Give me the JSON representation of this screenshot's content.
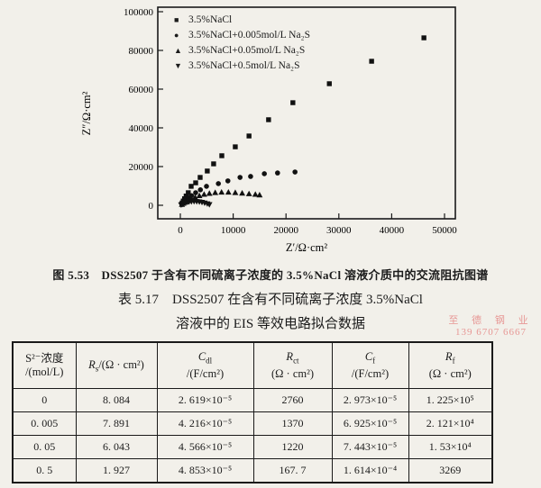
{
  "page_type": "scanned book page with EIS Nyquist plot and fitting-data table",
  "figure": {
    "caption": "图 5.53　DSS2507 于含有不同硫离子浓度的 3.5%NaCl 溶液介质中的交流阻抗图谱"
  },
  "chart_data": {
    "type": "scatter",
    "title": "",
    "xlabel": "Z′/Ω·cm²",
    "ylabel": "Z″/Ω·cm²",
    "xlim": [
      0,
      50000
    ],
    "ylim": [
      0,
      100000
    ],
    "x_ticks": [
      0,
      10000,
      20000,
      30000,
      40000,
      50000
    ],
    "y_ticks": [
      0,
      20000,
      40000,
      60000,
      80000,
      100000
    ],
    "grid": false,
    "legend_position": "top-left-inside",
    "marker_color": "#111111",
    "series": [
      {
        "name": "3.5%NaCl",
        "marker": "square",
        "points": [
          [
            350,
            1200
          ],
          [
            550,
            2200
          ],
          [
            800,
            3400
          ],
          [
            1100,
            4800
          ],
          [
            1500,
            6500
          ],
          [
            2050,
            9800
          ],
          [
            2900,
            11600
          ],
          [
            3750,
            14400
          ],
          [
            5100,
            17700
          ],
          [
            6300,
            21400
          ],
          [
            7850,
            25600
          ],
          [
            10400,
            30200
          ],
          [
            13000,
            35800
          ],
          [
            16700,
            44200
          ],
          [
            21300,
            53000
          ],
          [
            28200,
            62800
          ],
          [
            36200,
            74400
          ],
          [
            46100,
            86500
          ]
        ]
      },
      {
        "name": "3.5%NaCl+0.005mol/L Na₂S",
        "marker": "circle",
        "points": [
          [
            350,
            900
          ],
          [
            600,
            1700
          ],
          [
            1000,
            2700
          ],
          [
            1500,
            3800
          ],
          [
            2100,
            5000
          ],
          [
            2900,
            6500
          ],
          [
            3800,
            8000
          ],
          [
            4950,
            9800
          ],
          [
            7200,
            11200
          ],
          [
            9000,
            12600
          ],
          [
            11300,
            14400
          ],
          [
            13300,
            14900
          ],
          [
            15900,
            16300
          ],
          [
            18400,
            16700
          ],
          [
            21700,
            17200
          ]
        ]
      },
      {
        "name": "3.5%NaCl+0.05mol/L Na₂S",
        "marker": "triangle-up",
        "points": [
          [
            300,
            500
          ],
          [
            600,
            1100
          ],
          [
            1000,
            1800
          ],
          [
            1500,
            2600
          ],
          [
            2100,
            3400
          ],
          [
            2800,
            4200
          ],
          [
            3600,
            5000
          ],
          [
            4500,
            5700
          ],
          [
            5500,
            6200
          ],
          [
            6600,
            6600
          ],
          [
            7800,
            6800
          ],
          [
            9100,
            6800
          ],
          [
            10400,
            6600
          ],
          [
            11700,
            6300
          ],
          [
            13000,
            6000
          ],
          [
            14200,
            5700
          ],
          [
            15000,
            5400
          ]
        ]
      },
      {
        "name": "3.5%NaCl+0.5mol/L Na₂S",
        "marker": "triangle-down",
        "points": [
          [
            150,
            200
          ],
          [
            350,
            500
          ],
          [
            600,
            850
          ],
          [
            900,
            1200
          ],
          [
            1250,
            1500
          ],
          [
            1650,
            1750
          ],
          [
            2100,
            1900
          ],
          [
            2600,
            1950
          ],
          [
            3100,
            1900
          ],
          [
            3600,
            1750
          ],
          [
            4100,
            1500
          ],
          [
            4600,
            1150
          ],
          [
            5100,
            750
          ],
          [
            5500,
            350
          ]
        ]
      }
    ]
  },
  "table": {
    "title_line1": "表 5.17　DSS2507 在含有不同硫离子浓度 3.5%NaCl",
    "title_line2": "溶液中的 EIS 等效电路拟合数据",
    "columns": [
      {
        "line1": "S²⁻浓度",
        "line2": "/(mol/L)"
      },
      {
        "symbol": "R",
        "sub": "s",
        "unit": "/(Ω · cm²)"
      },
      {
        "symbol": "C",
        "sub": "dl",
        "unit": "/(F/cm²)"
      },
      {
        "symbol": "R",
        "sub": "ct",
        "unit": "(Ω · cm²)"
      },
      {
        "symbol": "C",
        "sub": "f",
        "unit": "/(F/cm²)"
      },
      {
        "symbol": "R",
        "sub": "f",
        "unit": "(Ω · cm²)"
      }
    ],
    "rows": [
      [
        "0",
        "8. 084",
        "2. 619×10⁻⁵",
        "2760",
        "2. 973×10⁻⁵",
        "1. 225×10⁵"
      ],
      [
        "0. 005",
        "7. 891",
        "4. 216×10⁻⁵",
        "1370",
        "6. 925×10⁻⁵",
        "2. 121×10⁴"
      ],
      [
        "0. 05",
        "6. 043",
        "4. 566×10⁻⁵",
        "1220",
        "7. 443×10⁻⁵",
        "1. 53×10⁴"
      ],
      [
        "0. 5",
        "1. 927",
        "4. 853×10⁻⁵",
        "167. 7",
        "1. 614×10⁻⁴",
        "3269"
      ]
    ]
  },
  "watermark": {
    "line1": "至 德 钢 业",
    "line2": "139 6707 6667",
    "color": "#e06060"
  }
}
